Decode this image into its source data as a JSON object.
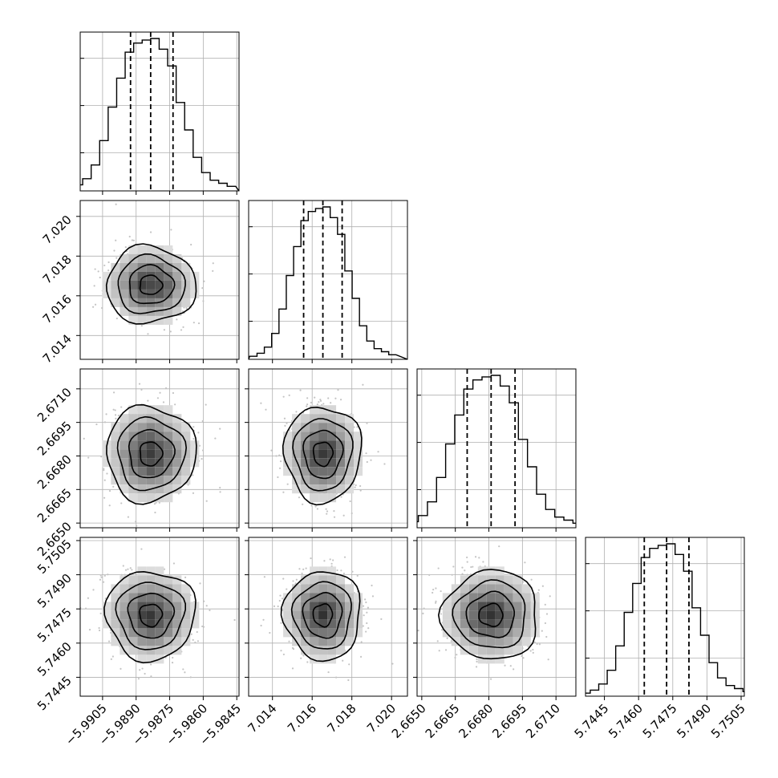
{
  "chart_data": {
    "type": "corner",
    "grid": true,
    "parameters": [
      {
        "index": 0,
        "range": [
          -5.9915,
          -5.9844
        ],
        "ticks": [
          "−5.9905",
          "−5.9890",
          "−5.9875",
          "−5.9860",
          "−5.9845"
        ],
        "tick_values": [
          -5.9905,
          -5.989,
          -5.9875,
          -5.986,
          -5.9845
        ],
        "quantiles": [
          -5.98925,
          -5.98835,
          -5.98735
        ],
        "mean": -5.98835,
        "sigma": 0.001
      },
      {
        "index": 1,
        "range": [
          7.0128,
          7.0208
        ],
        "ticks": [
          "7.014",
          "7.016",
          "7.018",
          "7.020"
        ],
        "tick_values": [
          7.014,
          7.016,
          7.018,
          7.02
        ],
        "quantiles": [
          7.01557,
          7.01654,
          7.01751
        ],
        "mean": 7.01654,
        "sigma": 0.00097
      },
      {
        "index": 2,
        "range": [
          2.66479,
          2.67189
        ],
        "ticks": [
          "2.6650",
          "2.6665",
          "2.6680",
          "2.6695",
          "2.6710"
        ],
        "tick_values": [
          2.665,
          2.6665,
          2.668,
          2.6695,
          2.671
        ],
        "quantiles": [
          2.66703,
          2.6681,
          2.66917
        ],
        "mean": 2.6681,
        "sigma": 0.00107
      },
      {
        "index": 3,
        "range": [
          5.74367,
          5.75064
        ],
        "ticks": [
          "5.7445",
          "5.7460",
          "5.7475",
          "5.7490",
          "5.7505"
        ],
        "tick_values": [
          5.7445,
          5.746,
          5.7475,
          5.749,
          5.7505
        ],
        "quantiles": [
          5.74625,
          5.74723,
          5.74821
        ],
        "mean": 5.74723,
        "sigma": 0.00098
      }
    ],
    "hist_heights": [
      0.02,
      0.04,
      0.08,
      0.17,
      0.33,
      0.55,
      0.74,
      0.91,
      0.97,
      0.99,
      1.0,
      0.93,
      0.82,
      0.58,
      0.4,
      0.22,
      0.12,
      0.07,
      0.05,
      0.03
    ],
    "hist_bins": 20,
    "contour_levels": [
      "0.5σ",
      "1σ",
      "1.5σ",
      "2σ"
    ]
  }
}
